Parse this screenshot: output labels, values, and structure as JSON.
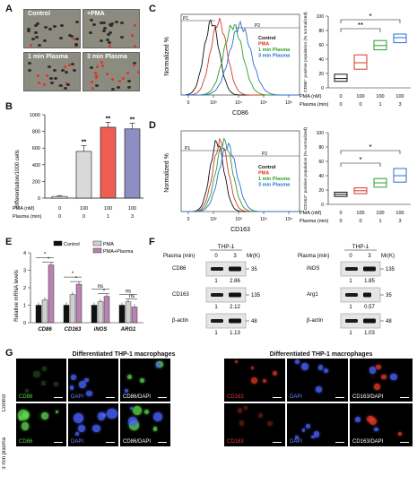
{
  "panels": {
    "A": "A",
    "B": "B",
    "C": "C",
    "D": "D",
    "E": "E",
    "F": "F",
    "G": "G"
  },
  "panelA": {
    "labels": [
      "Control",
      "+PMA",
      "1 min Plasma",
      "3 min Plasma"
    ]
  },
  "panelB": {
    "chart_data": {
      "type": "bar",
      "ylabel": "Differentiation/1000 cells",
      "ylim": [
        0,
        1000
      ],
      "yticks": [
        "0",
        "200",
        "400",
        "600",
        "800",
        "1000"
      ],
      "values": [
        20,
        560,
        850,
        830
      ],
      "errors": [
        10,
        70,
        60,
        70
      ],
      "sig": [
        "",
        "**",
        "**",
        "**"
      ],
      "colors": [
        "#ffffff",
        "#cfcfcf",
        "#ee5e55",
        "#8e8ec2"
      ]
    },
    "rows": [
      {
        "name": "PMA (nM)",
        "vals": [
          "0",
          "100",
          "100",
          "100"
        ]
      },
      {
        "name": "Plasma (min)",
        "vals": [
          "0",
          "0",
          "1",
          "3"
        ]
      }
    ]
  },
  "panelC": {
    "chart_data": {
      "type": "line",
      "ylabel": "Normalized %",
      "xlabel": "CD86",
      "ticks": [
        "0",
        "10³",
        "10⁴",
        "10⁵",
        "10⁶"
      ],
      "gates": [
        "P1",
        "P2"
      ],
      "series": [
        {
          "name": "Control",
          "color": "#111111"
        },
        {
          "name": "PMA",
          "color": "#d23a2a"
        },
        {
          "name": "1 min Plasma",
          "color": "#2aa02a"
        },
        {
          "name": "3 min Plasma",
          "color": "#2a6fd2"
        }
      ]
    },
    "box": {
      "type": "box",
      "ylabel": "CD86⁺ positive population (% normalized)",
      "yticks": [
        "0",
        "20",
        "40",
        "60",
        "80",
        "100"
      ],
      "ylim": [
        0,
        100
      ],
      "boxes": [
        [
          9,
          13,
          19
        ],
        [
          26,
          35,
          46
        ],
        [
          53,
          59,
          66
        ],
        [
          63,
          70,
          75
        ]
      ],
      "colors": [
        "#111111",
        "#d23a2a",
        "#2aa02a",
        "#2a6fd2"
      ],
      "sig": [
        "*",
        "**"
      ]
    },
    "rows": [
      {
        "name": "PMA (nM)",
        "vals": [
          "0",
          "100",
          "100",
          "100"
        ]
      },
      {
        "name": "Plasma (min)",
        "vals": [
          "0",
          "0",
          "1",
          "3"
        ]
      }
    ]
  },
  "panelD": {
    "chart_data": {
      "type": "line",
      "ylabel": "Normalized %",
      "xlabel": "CD163",
      "ticks": [
        "0",
        "10²",
        "10³",
        "10⁴",
        "10⁵"
      ],
      "gates": [
        "P1",
        "P2"
      ],
      "series": [
        {
          "name": "Control",
          "color": "#111111"
        },
        {
          "name": "PMA",
          "color": "#d23a2a"
        },
        {
          "name": "1 min Plasma",
          "color": "#2aa02a"
        },
        {
          "name": "3 min Plasma",
          "color": "#2a6fd2"
        }
      ]
    },
    "box": {
      "type": "box",
      "ylabel": "CD163⁺ positive population (% normalized)",
      "yticks": [
        "0",
        "20",
        "40",
        "60",
        "80",
        "100"
      ],
      "ylim": [
        0,
        100
      ],
      "boxes": [
        [
          11,
          14,
          17
        ],
        [
          15,
          19,
          23
        ],
        [
          24,
          30,
          36
        ],
        [
          31,
          40,
          50
        ]
      ],
      "colors": [
        "#111111",
        "#d23a2a",
        "#2aa02a",
        "#2a6fd2"
      ],
      "sig": [
        "*",
        "*"
      ]
    },
    "rows": [
      {
        "name": "PMA (nM)",
        "vals": [
          "0",
          "100",
          "100",
          "100"
        ]
      },
      {
        "name": "Plasma (min)",
        "vals": [
          "0",
          "0",
          "1",
          "3"
        ]
      }
    ]
  },
  "panelE": {
    "chart_data": {
      "type": "bar",
      "ylabel": "Relative mRNA levels",
      "ylim": [
        0,
        4
      ],
      "yticks": [
        "0",
        "1",
        "2",
        "3",
        "4"
      ],
      "categories": [
        "CD86",
        "CD163",
        "iNOS",
        "ARG1"
      ],
      "series": [
        {
          "name": "Control",
          "values": [
            1.0,
            1.0,
            1.0,
            1.0
          ],
          "color": "#111111"
        },
        {
          "name": "PMA",
          "values": [
            1.3,
            1.6,
            1.2,
            1.2
          ],
          "color": "#d0d0d0"
        },
        {
          "name": "PMA+Plasma",
          "values": [
            3.3,
            2.2,
            1.5,
            0.9
          ],
          "color": "#b983b4"
        }
      ],
      "sig": [
        [
          "*",
          "*"
        ],
        [
          "*",
          "*"
        ],
        [
          "ns",
          "*"
        ],
        [
          "ns",
          "ns"
        ]
      ]
    }
  },
  "panelF": {
    "left": {
      "header": "THP-1",
      "plasma": "Plasma (min)",
      "lanes": [
        "0",
        "3"
      ],
      "mr": "Mr(K)",
      "rows": [
        {
          "name": "CD86",
          "kd": "35",
          "q": [
            "1",
            "2.86"
          ]
        },
        {
          "name": "CD163",
          "kd": "135",
          "q": [
            "1",
            "2.12"
          ]
        },
        {
          "name": "β-actin",
          "kd": "48",
          "q": [
            "1",
            "1.13"
          ]
        }
      ]
    },
    "right": {
      "header": "THP-1",
      "plasma": "Plasma (min)",
      "lanes": [
        "0",
        "3"
      ],
      "mr": "Mr(K)",
      "rows": [
        {
          "name": "iNOS",
          "kd": "135",
          "q": [
            "1",
            "1.85"
          ]
        },
        {
          "name": "Arg1",
          "kd": "35",
          "q": [
            "1",
            "0.57"
          ]
        },
        {
          "name": "β-actin",
          "kd": "48",
          "q": [
            "1",
            "1.03"
          ]
        }
      ]
    }
  },
  "panelG": {
    "title_left": "Differentiated THP-1 macrophages",
    "title_right": "Differentiated THP-1 macrophages",
    "rows": [
      "Control",
      "3 min plasma"
    ],
    "cols": [
      "CD86",
      "DAPI",
      "CD86/DAPI",
      "CD163",
      "DAPI",
      "CD163/DAPI"
    ]
  }
}
